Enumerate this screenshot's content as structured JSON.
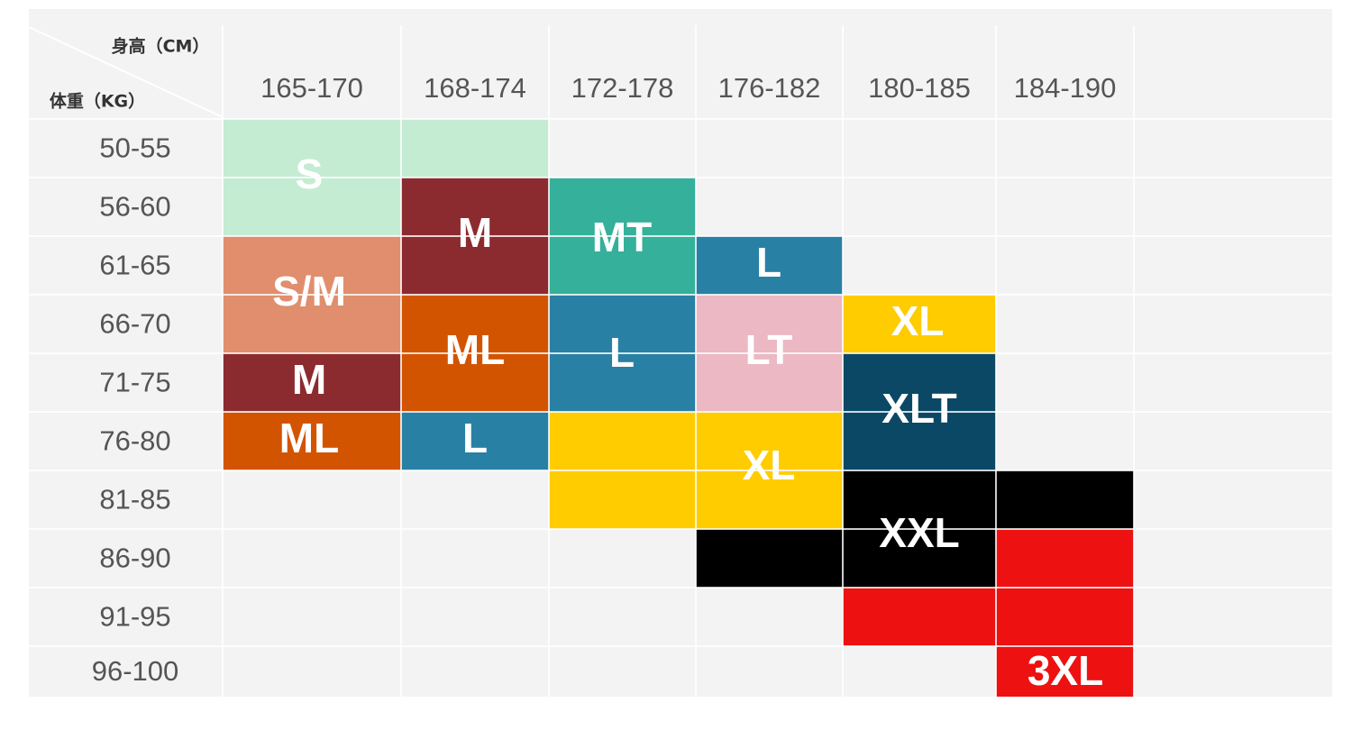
{
  "header": {
    "height_label": "身高（CM）",
    "weight_label": "体重（KG）"
  },
  "columns": [
    "165-170",
    "168-174",
    "172-178",
    "176-182",
    "180-185",
    "184-190"
  ],
  "rows": [
    "50-55",
    "56-60",
    "61-65",
    "66-70",
    "71-75",
    "76-80",
    "81-85",
    "86-90",
    "91-95",
    "96-100"
  ],
  "sizes": [
    "S",
    "S/M",
    "M",
    "ML",
    "M",
    "ML",
    "L",
    "MT",
    "L",
    "XL",
    "L",
    "LT",
    "XL",
    "XLT",
    "XXL",
    "3XL"
  ]
}
